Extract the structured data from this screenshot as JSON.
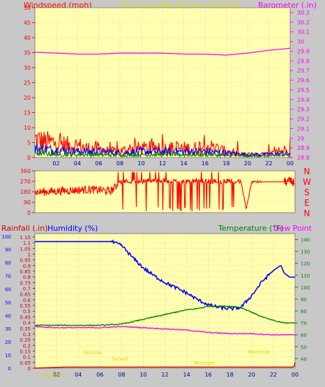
{
  "header": {
    "left": "Windspeed (mph)",
    "center": "24 hour graph for   June 23 2016",
    "right": "Barometer (.in)"
  },
  "colors": {
    "plot_bg": "#ffffb0",
    "frame": "#c8c8c8",
    "red": "#ff0000",
    "dark_red": "#cc0000",
    "blue": "#0000ff",
    "green": "#008000",
    "magenta": "#ff00ff",
    "yellow_text": "#e0e000",
    "grid": "#ff9a9a"
  },
  "chart_data": [
    {
      "id": "wind_speed_baro",
      "type": "line",
      "x_ticks": [
        "02",
        "04",
        "06",
        "08",
        "10",
        "12",
        "14",
        "16",
        "18",
        "20",
        "22",
        "00"
      ],
      "x_range": [
        0,
        24
      ],
      "y_left_label": "Windspeed (mph)",
      "y_left_ticks": [
        0,
        5,
        10,
        15,
        20,
        25,
        30,
        35,
        40,
        45,
        50
      ],
      "y_left_range": [
        0,
        50
      ],
      "y_right_label": "Barometer (.in)",
      "y_right_ticks": [
        "28.8",
        "28.9",
        "29",
        "29.1",
        "29.2",
        "29.3",
        "29.4",
        "29.5",
        "29.6",
        "29.7",
        "29.8",
        "29.9",
        "30",
        "30.1",
        "30.2",
        "30.3"
      ],
      "y_right_range": [
        28.8,
        30.35
      ],
      "series": [
        {
          "color": "magenta",
          "axis": "right",
          "x": [
            0,
            2,
            4,
            6,
            8,
            10,
            12,
            14,
            16,
            18,
            20,
            22,
            24
          ],
          "values": [
            29.89,
            29.88,
            29.87,
            29.87,
            29.88,
            29.88,
            29.88,
            29.87,
            29.87,
            29.86,
            29.88,
            29.91,
            29.93
          ]
        },
        {
          "color": "red",
          "axis": "left",
          "x": [
            0,
            1,
            2,
            3,
            4,
            5,
            6,
            7,
            8,
            9,
            10,
            11,
            12,
            13,
            14,
            15,
            16,
            17,
            18,
            19,
            20,
            21,
            22,
            23,
            24
          ],
          "values": [
            6,
            5,
            5,
            4,
            4,
            3,
            3,
            2,
            2,
            3,
            3,
            3,
            3,
            3,
            3,
            3,
            4,
            3,
            2,
            1,
            1,
            1,
            1,
            2,
            3
          ]
        },
        {
          "color": "blue",
          "axis": "left",
          "x": [
            0,
            2,
            4,
            6,
            8,
            10,
            12,
            14,
            16,
            18,
            20,
            22,
            24
          ],
          "values": [
            3,
            2.5,
            2,
            2,
            1.5,
            2,
            2,
            2,
            2,
            1.5,
            1,
            1,
            1.5
          ]
        },
        {
          "color": "green",
          "axis": "left",
          "x": [
            0,
            2,
            4,
            6,
            8,
            10,
            12,
            14,
            16,
            18,
            20,
            22,
            24
          ],
          "values": [
            1.5,
            1.2,
            1,
            1,
            0.8,
            1,
            1,
            1,
            1,
            0.8,
            0.5,
            0.5,
            0.8
          ]
        }
      ]
    },
    {
      "id": "wind_direction",
      "type": "line",
      "y_ticks": [
        0,
        90,
        180,
        270,
        360
      ],
      "y_range": [
        0,
        360
      ],
      "compass_labels": [
        "N",
        "W",
        "S",
        "E",
        "N"
      ],
      "series": [
        {
          "color": "red",
          "x": [
            0,
            1,
            2,
            3,
            4,
            5,
            6,
            7,
            8,
            9,
            10,
            11,
            12,
            13,
            14,
            15,
            16,
            17,
            18,
            19,
            19.5,
            20,
            21,
            22,
            23,
            24
          ],
          "values": [
            175,
            180,
            185,
            190,
            195,
            200,
            195,
            185,
            270,
            270,
            270,
            280,
            275,
            270,
            270,
            275,
            270,
            265,
            275,
            270,
            35,
            265,
            265,
            265,
            265,
            265
          ]
        }
      ]
    },
    {
      "id": "rain_humidity_temp",
      "type": "line",
      "y_left_label_1": "Rainfall (.in)",
      "y_left_label_2": "Humidity (%)",
      "y_right_label_1": "Temperature (°F)",
      "y_right_label_2": "Dew Point (°F)",
      "rain_ticks": [
        "0",
        "0.05",
        "0.1",
        "0.15",
        "0.2",
        "0.25",
        "0.3",
        "0.35",
        "0.4",
        "0.45",
        "0.5",
        "0.55",
        "0.6",
        "0.65",
        "0.7",
        "0.75",
        "0.8",
        "0.85",
        "0.9",
        "0.95",
        "1",
        "1.05",
        "1.1",
        "1.15"
      ],
      "rain_range": [
        0,
        1.18
      ],
      "humidity_ticks": [
        0,
        10,
        20,
        30,
        40,
        50,
        60,
        70,
        80,
        90,
        100
      ],
      "humidity_range": [
        0,
        102
      ],
      "temp_ticks": [
        40,
        50,
        60,
        70,
        80,
        90,
        100,
        110,
        120,
        130,
        140
      ],
      "temp_range": [
        32,
        145
      ],
      "series": [
        {
          "name": "Humidity (%)",
          "color": "blue",
          "axis": "humidity",
          "x": [
            0,
            2,
            4,
            6,
            7,
            8,
            9,
            10,
            11,
            12,
            13,
            14,
            15,
            16,
            17,
            18,
            19,
            20,
            21,
            22,
            22.7,
            23,
            23.5,
            24
          ],
          "values": [
            96,
            96,
            96,
            96,
            96,
            93,
            84,
            76,
            70,
            65,
            61,
            57,
            52,
            48,
            46,
            45,
            46,
            55,
            66,
            74,
            78,
            72,
            69,
            69
          ]
        },
        {
          "name": "Temperature (°F)",
          "color": "green",
          "axis": "temp",
          "x": [
            0,
            2,
            4,
            6,
            7,
            8,
            9,
            10,
            11,
            12,
            13,
            14,
            15,
            16,
            17,
            18,
            19,
            20,
            21,
            22,
            23,
            24
          ],
          "values": [
            68,
            68,
            68,
            68,
            68.5,
            69,
            71,
            73,
            75,
            77,
            79,
            81,
            82,
            84,
            84,
            84,
            83,
            79,
            75,
            72,
            70,
            70
          ]
        },
        {
          "name": "Dew Point (°F)",
          "color": "magenta",
          "axis": "temp",
          "x": [
            0,
            2,
            4,
            6,
            8,
            10,
            12,
            14,
            16,
            18,
            20,
            22,
            24
          ],
          "values": [
            67,
            66,
            66,
            66,
            67,
            66,
            65,
            64,
            62,
            61,
            61,
            60,
            60
          ]
        },
        {
          "name": "Rainfall (.in)",
          "color": "dark_red",
          "axis": "rain",
          "x": [
            0,
            3,
            6,
            9,
            12,
            15,
            18,
            21,
            23.9,
            24
          ],
          "values": [
            0,
            0.01,
            0.01,
            0.01,
            0.01,
            0.01,
            0.01,
            0.01,
            0.01,
            0.05
          ]
        }
      ],
      "annotations": [
        "Sunrise",
        "Sunset",
        "Moonrise",
        "Moonset",
        "Daylight"
      ],
      "x_ticks": [
        "02",
        "04",
        "06",
        "08",
        "10",
        "12",
        "14",
        "16",
        "18",
        "20",
        "22",
        "00"
      ]
    }
  ]
}
